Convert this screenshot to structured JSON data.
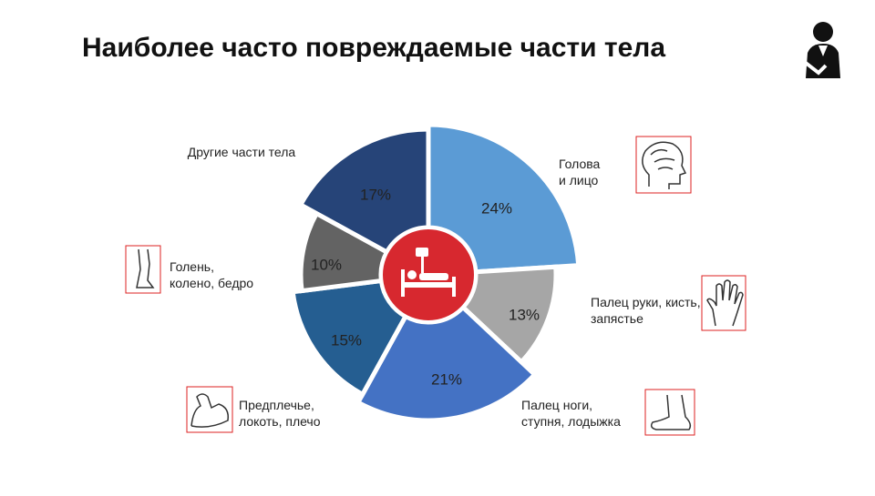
{
  "chart_data": {
    "type": "pie",
    "donut": true,
    "title": "Наиболее часто повреждаемые части тела",
    "categories": [
      "Голова\nи лицо",
      "Палец руки, кисть,\nзапястье",
      "Палец ноги,\nступня, лодыжка",
      "Предплечье,\nлокоть, плечо",
      "Голень,\nколено, бедро",
      "Другие части тела"
    ],
    "values": [
      24,
      13,
      21,
      15,
      10,
      17
    ],
    "value_labels": [
      "24%",
      "13%",
      "21%",
      "15%",
      "10%",
      "17%"
    ],
    "colors": [
      "#5b9bd5",
      "#a6a6a6",
      "#4472c4",
      "#255e91",
      "#636363",
      "#264478"
    ]
  }
}
